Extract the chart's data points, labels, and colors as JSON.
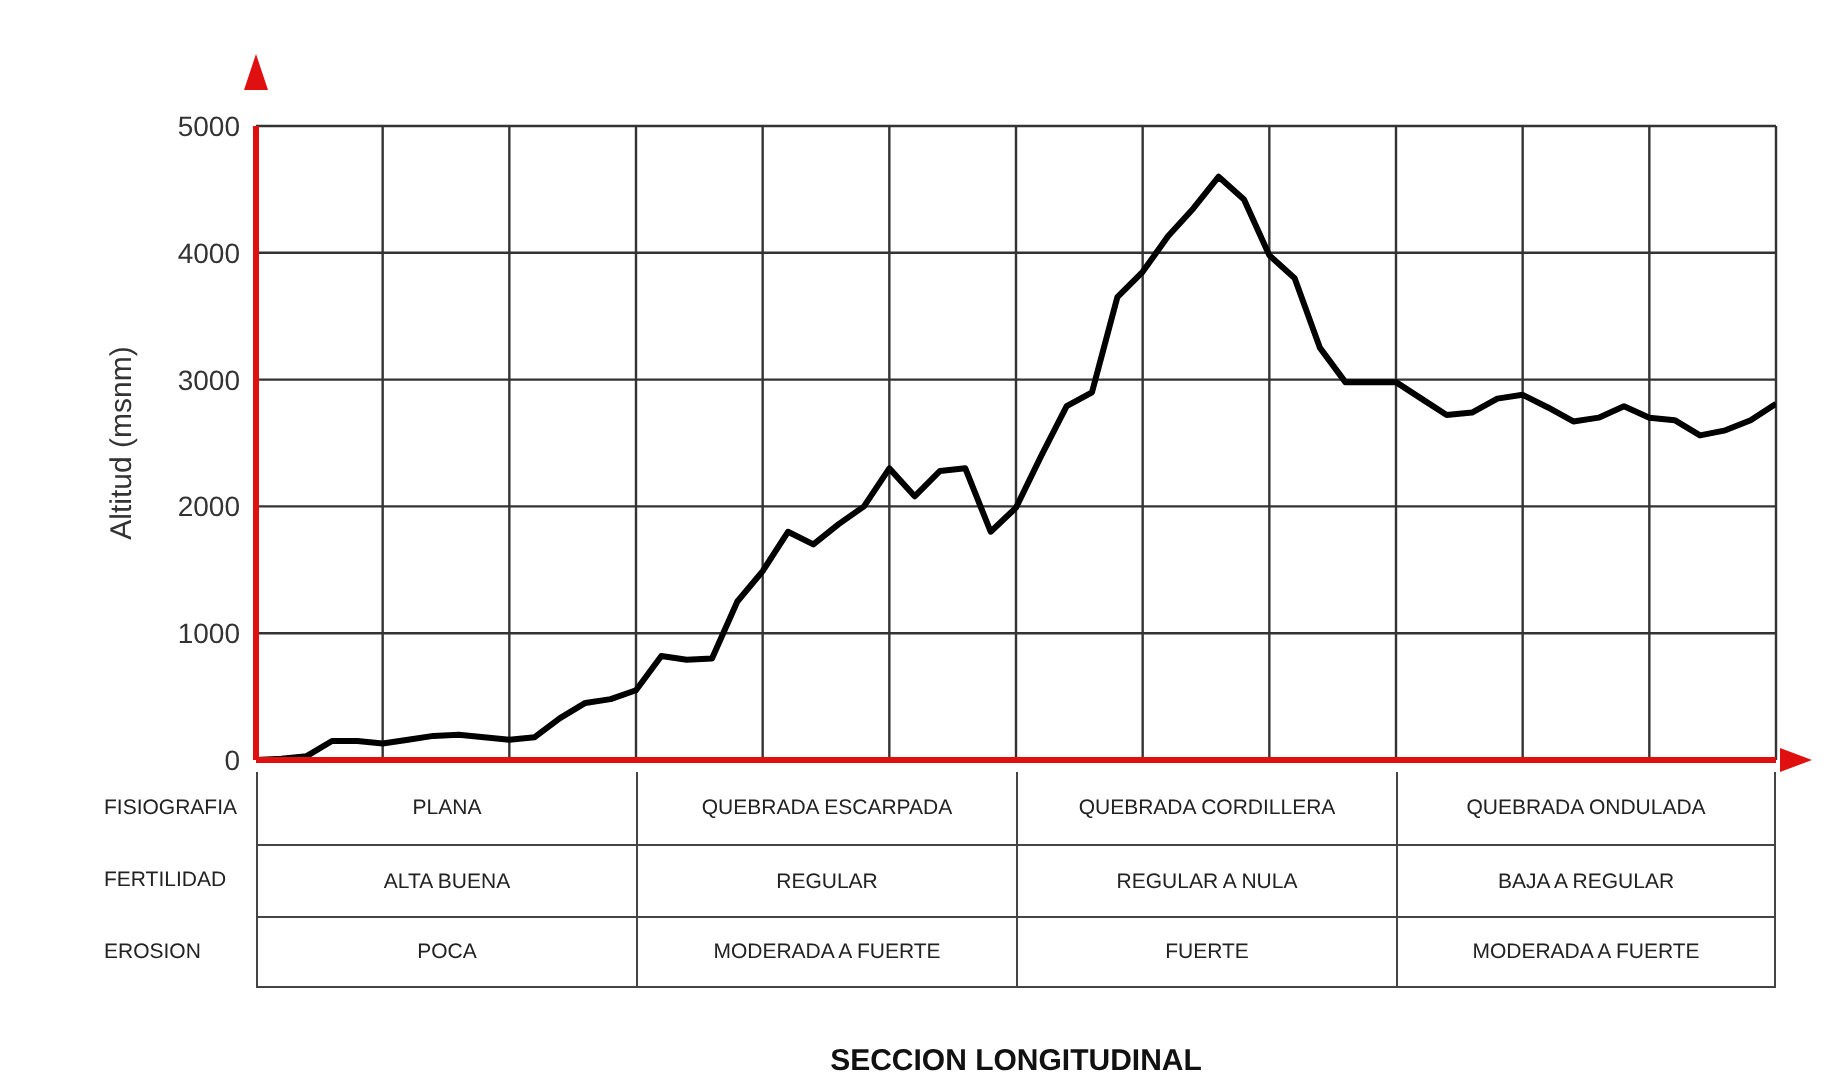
{
  "chart_data": {
    "type": "line",
    "ylabel": "Altitud (msnm)",
    "categories": [
      null,
      null,
      null,
      null,
      null,
      null,
      null,
      null,
      null,
      null,
      null,
      null,
      null,
      null,
      null,
      null,
      null,
      null,
      null,
      null,
      null,
      null,
      null,
      null,
      null,
      null,
      null,
      null,
      null,
      null,
      null,
      null,
      null,
      null,
      null,
      null,
      null,
      null,
      null,
      null,
      null,
      null,
      null,
      null,
      null,
      null,
      null,
      null,
      null,
      null,
      null,
      null,
      null,
      null,
      null,
      null,
      null,
      null,
      null,
      null,
      null
    ],
    "series": [
      {
        "color": "#000000",
        "values": [
          0,
          10,
          30,
          150,
          150,
          130,
          160,
          190,
          200,
          180,
          160,
          180,
          330,
          450,
          480,
          550,
          820,
          790,
          800,
          1250,
          1490,
          1800,
          1700,
          1860,
          2000,
          2300,
          2080,
          2280,
          2300,
          1800,
          1990,
          2400,
          2790,
          2900,
          3650,
          3850,
          4130,
          4350,
          4600,
          4420,
          3980,
          3800,
          3250,
          2980,
          2980,
          2980,
          2850,
          2720,
          2740,
          2850,
          2880,
          2780,
          2670,
          2700,
          2790,
          2700,
          2680,
          2560,
          2600,
          2680,
          2810
        ]
      }
    ],
    "ylim": [
      0,
      5000
    ],
    "yticks": [
      0,
      1000,
      2000,
      3000,
      4000,
      5000
    ],
    "grid": true,
    "legend": false,
    "marker": "none",
    "line_style": "solid",
    "annotations": [
      "FISIOGRAFIA",
      "PLANA",
      "QUEBRADA ESCARPADA",
      "QUEBRADA CORDILLERA",
      "QUEBRADA ONDULADA",
      "FERTILIDAD",
      "ALTA BUENA",
      "REGULAR",
      "REGULAR A NULA",
      "BAJA A REGULAR",
      "EROSION",
      "POCA",
      "MODERADA A FUERTE",
      "FUERTE",
      "MODERADA A FUERTE",
      "SECCION LONGITUDINAL"
    ]
  }
}
